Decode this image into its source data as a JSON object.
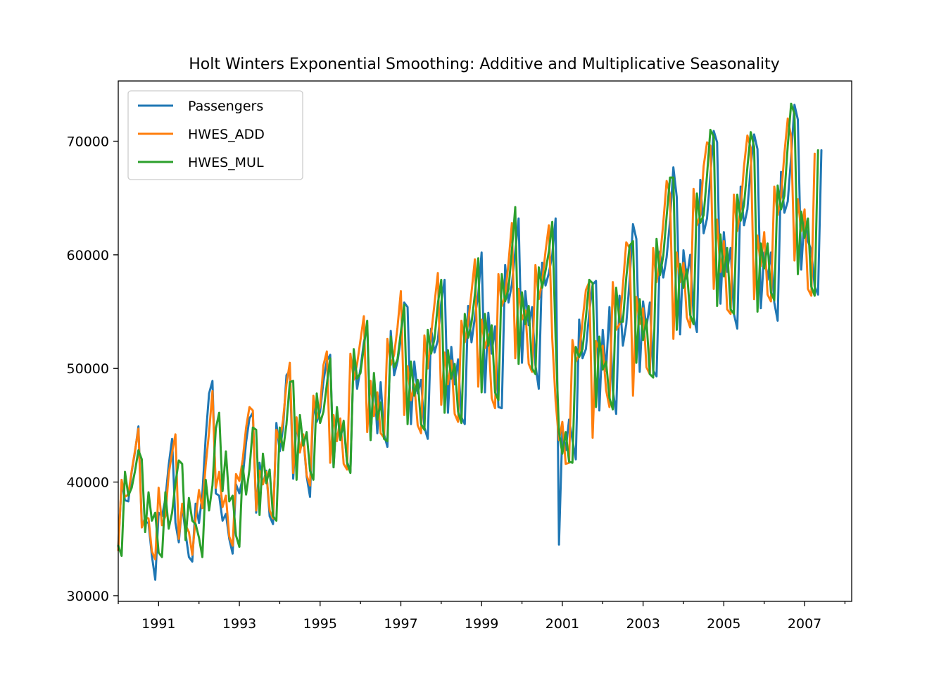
{
  "chart_data": {
    "type": "line",
    "title": "Holt Winters Exponential Smoothing: Additive and Multiplicative Seasonality",
    "xlabel": "",
    "ylabel": "",
    "xlim": [
      "1990-01",
      "2008-03"
    ],
    "ylim": [
      29500,
      75300
    ],
    "x_ticks": [
      "1991",
      "1993",
      "1995",
      "1997",
      "1999",
      "2001",
      "2003",
      "2005",
      "2007"
    ],
    "y_ticks": [
      30000,
      40000,
      50000,
      60000,
      70000
    ],
    "grid": false,
    "legend": "top-left",
    "start": "1990-01",
    "frequency": "monthly",
    "series": [
      {
        "name": "Passengers",
        "color": "#1f77b4",
        "values": [
          34300,
          40000,
          38400,
          38300,
          40900,
          42700,
          44900,
          36300,
          36500,
          36400,
          33500,
          31400,
          37300,
          37000,
          38500,
          41500,
          43800,
          36400,
          34700,
          38000,
          35500,
          33400,
          33000,
          38100,
          36400,
          39000,
          44000,
          47800,
          48900,
          39000,
          38800,
          36600,
          37200,
          35000,
          33700,
          39800,
          39000,
          40400,
          43500,
          45600,
          46100,
          37300,
          41700,
          39800,
          41000,
          37000,
          36300,
          45200,
          42700,
          44800,
          49400,
          49800,
          40300,
          45300,
          42800,
          44000,
          40500,
          38700,
          47000,
          45300,
          46200,
          48900,
          50700,
          51200,
          41300,
          46300,
          44000,
          45000,
          41800,
          40900,
          51400,
          48200,
          50000,
          52300,
          53800,
          43700,
          49300,
          44300,
          48800,
          44200,
          43100,
          53300,
          49400,
          50600,
          52600,
          55800,
          55400,
          45100,
          50600,
          47800,
          49000,
          44800,
          43800,
          53500,
          51400,
          52500,
          55800,
          57800,
          46100,
          51900,
          48600,
          50800,
          45700,
          45100,
          55500,
          52300,
          54500,
          56500,
          60200,
          47900,
          54900,
          51300,
          53700,
          46600,
          46500,
          59100,
          55800,
          57400,
          60300,
          63200,
          50500,
          56800,
          53800,
          55400,
          50300,
          48200,
          59300,
          57300,
          58400,
          60000,
          63200,
          34500,
          44600,
          42800,
          45500,
          43700,
          42000,
          54300,
          50900,
          51700,
          54900,
          57400,
          57700,
          46300,
          53400,
          49800,
          55400,
          48100,
          46000,
          56400,
          52000,
          53900,
          57800,
          62700,
          61400,
          49700,
          55900,
          53600,
          55800,
          49800,
          49300,
          60300,
          58000,
          59800,
          63000,
          67700,
          65100,
          53000,
          60400,
          57900,
          60000,
          54600,
          53200,
          66600,
          61900,
          63200,
          67000,
          70900,
          69900,
          55700,
          62000,
          58500,
          60600,
          54800,
          53500,
          66000,
          62600,
          64000,
          67800,
          70600,
          69300,
          55300,
          60200,
          57800,
          60200,
          55800,
          54200,
          67300,
          63700,
          64700,
          68600,
          73200,
          71900,
          58700,
          63500,
          61200,
          60400,
          57200,
          56500,
          69200
        ]
      },
      {
        "name": "HWES_ADD",
        "color": "#ff7f0e",
        "values": [
          34000,
          40200,
          38700,
          38900,
          41000,
          42800,
          44700,
          36000,
          36900,
          36800,
          33900,
          33200,
          39500,
          36200,
          37000,
          40700,
          42600,
          44200,
          35000,
          38100,
          36200,
          35600,
          33600,
          36800,
          39300,
          37700,
          41500,
          44400,
          48000,
          39500,
          40900,
          37800,
          38800,
          35200,
          34400,
          40700,
          40100,
          42000,
          44800,
          46600,
          46300,
          37500,
          41000,
          39800,
          40900,
          37500,
          36800,
          44600,
          43500,
          45500,
          48600,
          50500,
          40800,
          45700,
          42600,
          44200,
          40600,
          39700,
          47600,
          45600,
          46700,
          50300,
          51500,
          41700,
          45900,
          43600,
          45600,
          41600,
          41100,
          51300,
          49000,
          50400,
          52500,
          54600,
          44400,
          48900,
          45800,
          47900,
          44300,
          43900,
          52600,
          50300,
          51200,
          53600,
          56800,
          45900,
          50200,
          47200,
          48600,
          45000,
          44300,
          52900,
          50000,
          53000,
          55700,
          58400,
          46800,
          51400,
          48600,
          50700,
          46000,
          45300,
          54200,
          52300,
          54000,
          56700,
          59600,
          48400,
          54300,
          51800,
          53000,
          47400,
          46500,
          58300,
          55500,
          56400,
          59300,
          62800,
          50900,
          57000,
          54300,
          55100,
          50400,
          49700,
          59100,
          56100,
          57600,
          60300,
          62600,
          52600,
          47100,
          43700,
          45300,
          41600,
          41700,
          52500,
          50600,
          51200,
          54200,
          56900,
          57600,
          43900,
          52400,
          51600,
          52000,
          48100,
          46600,
          57600,
          53400,
          53900,
          57300,
          61100,
          60600,
          47600,
          56300,
          53900,
          55300,
          50100,
          49500,
          60600,
          57600,
          59600,
          62800,
          66500,
          65300,
          52600,
          60200,
          57600,
          59300,
          54500,
          53600,
          65800,
          62600,
          63500,
          67800,
          69900,
          69600,
          57000,
          63100,
          58500,
          61200,
          55200,
          54800,
          65300,
          62100,
          64100,
          67800,
          70500,
          69400,
          56100,
          61700,
          59000,
          62000,
          56500,
          55900,
          66000,
          63500,
          65100,
          68900,
          72000,
          70400,
          59500,
          64900,
          62100,
          64000,
          57000,
          56400,
          68900
        ]
      },
      {
        "name": "HWES_MUL",
        "color": "#2ca02c",
        "values": [
          34400,
          33500,
          40900,
          38800,
          39500,
          41000,
          42800,
          42000,
          35600,
          39100,
          36600,
          37300,
          33800,
          33400,
          39100,
          35900,
          37300,
          39900,
          41900,
          41600,
          34900,
          38600,
          36600,
          36300,
          35100,
          33400,
          40200,
          37500,
          39700,
          44700,
          46100,
          39200,
          42700,
          38300,
          38800,
          35300,
          34300,
          41400,
          38900,
          41100,
          44800,
          44600,
          37100,
          42500,
          39900,
          41100,
          37000,
          36600,
          44800,
          42800,
          45100,
          48800,
          48900,
          40200,
          45900,
          43200,
          44400,
          41000,
          40200,
          47800,
          45200,
          46200,
          48600,
          50900,
          41300,
          46600,
          43700,
          45400,
          41700,
          40800,
          51700,
          49100,
          49600,
          51900,
          54200,
          43700,
          49600,
          45500,
          47000,
          43800,
          43600,
          52800,
          50100,
          50800,
          53200,
          55600,
          45100,
          50600,
          47600,
          49000,
          45100,
          44600,
          53400,
          51300,
          52600,
          55700,
          57800,
          46100,
          51600,
          49100,
          50400,
          46200,
          45200,
          54800,
          52700,
          54000,
          56500,
          59700,
          47900,
          54800,
          52000,
          53800,
          47900,
          47200,
          58300,
          55900,
          57000,
          60400,
          64200,
          50400,
          56700,
          53900,
          55500,
          50000,
          49500,
          58900,
          57100,
          58600,
          60300,
          62900,
          52600,
          44400,
          42500,
          44400,
          41800,
          41700,
          51900,
          51000,
          51700,
          54500,
          57800,
          57500,
          46600,
          52800,
          49900,
          50600,
          47400,
          46400,
          57100,
          54100,
          54100,
          58000,
          60800,
          61200,
          50500,
          56100,
          52500,
          54300,
          49500,
          49200,
          61400,
          58200,
          59900,
          63400,
          66800,
          66800,
          53400,
          59200,
          57100,
          58700,
          54700,
          53900,
          65400,
          62800,
          63500,
          67000,
          71000,
          70400,
          55500,
          61800,
          58100,
          60600,
          55200,
          54800,
          65300,
          63000,
          64400,
          67700,
          70800,
          69500,
          55000,
          61000,
          58800,
          61000,
          56700,
          56000,
          66100,
          64000,
          65200,
          69600,
          73300,
          72400,
          58300,
          63800,
          61500,
          63200,
          57200,
          56400,
          69200
        ]
      }
    ]
  }
}
